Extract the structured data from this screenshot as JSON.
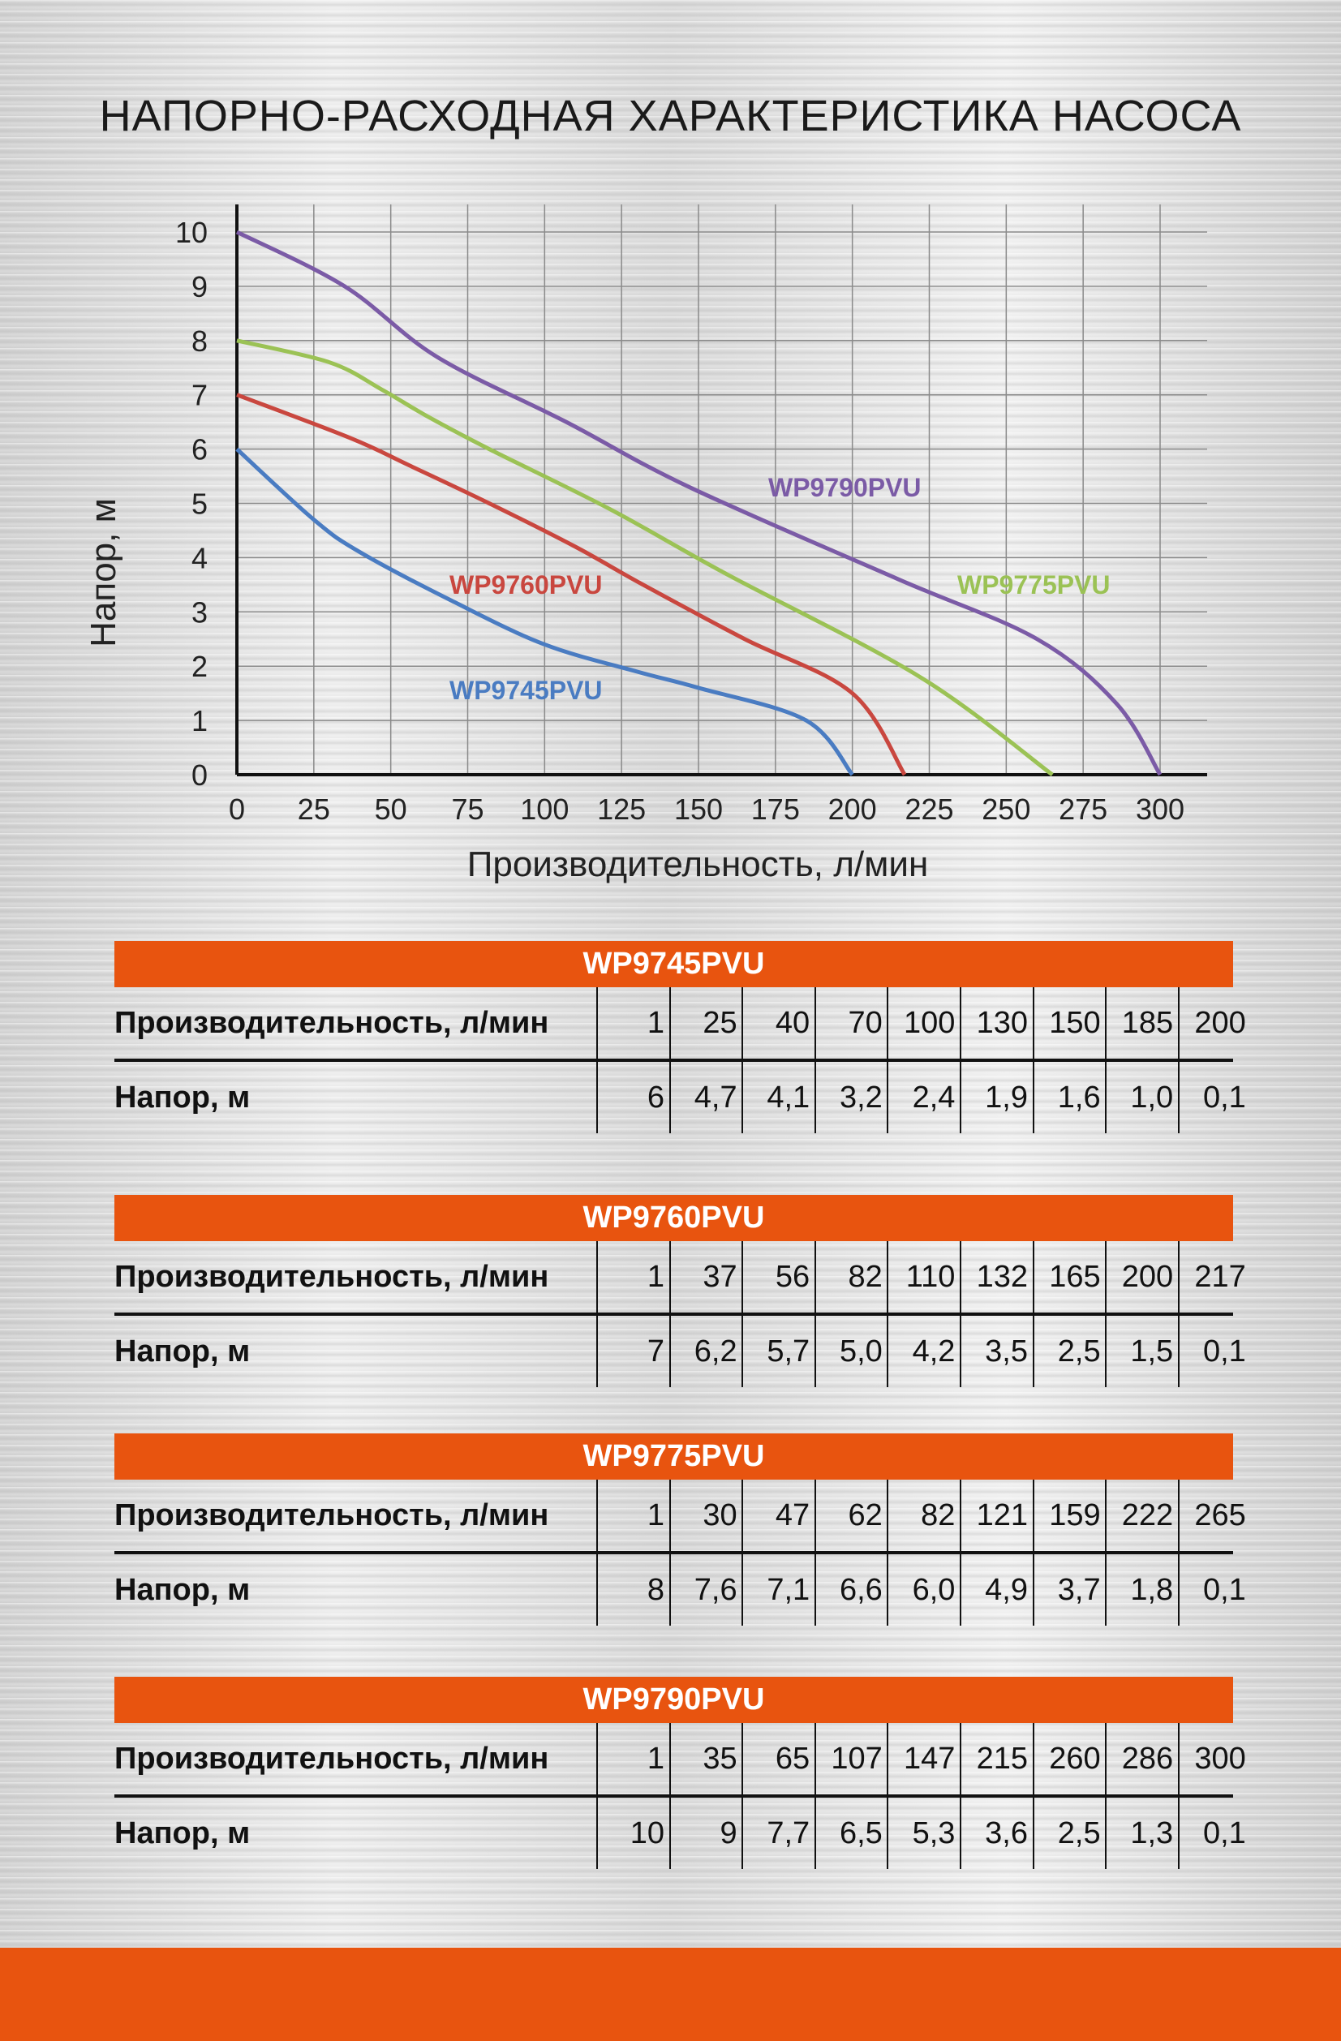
{
  "title": "НАПОРНО-РАСХОДНАЯ ХАРАКТЕРИСТИКА НАСОСА",
  "chart_data": {
    "type": "line",
    "title": "НАПОРНО-РАСХОДНАЯ ХАРАКТЕРИСТИКА НАСОСА",
    "xlabel": "Производительность, л/мин",
    "ylabel": "Напор, м",
    "xlim": [
      0,
      300
    ],
    "ylim": [
      0,
      10
    ],
    "xticks": [
      "0",
      "25",
      "50",
      "75",
      "100",
      "125",
      "150",
      "175",
      "200",
      "225",
      "250",
      "275",
      "300"
    ],
    "yticks": [
      "0",
      "1",
      "2",
      "3",
      "4",
      "5",
      "6",
      "7",
      "8",
      "9",
      "10"
    ],
    "grid": true,
    "series": [
      {
        "name": "WP9745PVU",
        "color": "#4A7CC2",
        "x": [
          1,
          25,
          40,
          70,
          100,
          130,
          150,
          185,
          200
        ],
        "y": [
          6,
          4.7,
          4.1,
          3.2,
          2.4,
          1.9,
          1.6,
          1.0,
          0.1
        ]
      },
      {
        "name": "WP9760PVU",
        "color": "#C9473F",
        "x": [
          1,
          37,
          56,
          82,
          110,
          132,
          165,
          200,
          217
        ],
        "y": [
          7,
          6.2,
          5.7,
          5.0,
          4.2,
          3.5,
          2.5,
          1.5,
          0.1
        ]
      },
      {
        "name": "WP9775PVU",
        "color": "#9BC255",
        "x": [
          1,
          30,
          47,
          62,
          82,
          121,
          159,
          222,
          265
        ],
        "y": [
          8,
          7.6,
          7.1,
          6.6,
          6.0,
          4.9,
          3.7,
          1.8,
          0.1
        ]
      },
      {
        "name": "WP9790PVU",
        "color": "#7B5BA6",
        "x": [
          1,
          35,
          65,
          107,
          147,
          215,
          260,
          286,
          300
        ],
        "y": [
          10,
          9,
          7.7,
          6.5,
          5.3,
          3.6,
          2.5,
          1.3,
          0.1
        ]
      }
    ]
  },
  "tables": [
    {
      "model": "WP9745PVU",
      "flow_label": "Производительность, л/мин",
      "head_label": "Напор, м",
      "flow": [
        "1",
        "25",
        "40",
        "70",
        "100",
        "130",
        "150",
        "185",
        "200"
      ],
      "head": [
        "6",
        "4,7",
        "4,1",
        "3,2",
        "2,4",
        "1,9",
        "1,6",
        "1,0",
        "0,1"
      ]
    },
    {
      "model": "WP9760PVU",
      "flow_label": "Производительность, л/мин",
      "head_label": "Напор, м",
      "flow": [
        "1",
        "37",
        "56",
        "82",
        "110",
        "132",
        "165",
        "200",
        "217"
      ],
      "head": [
        "7",
        "6,2",
        "5,7",
        "5,0",
        "4,2",
        "3,5",
        "2,5",
        "1,5",
        "0,1"
      ]
    },
    {
      "model": "WP9775PVU",
      "flow_label": "Производительность, л/мин",
      "head_label": "Напор, м",
      "flow": [
        "1",
        "30",
        "47",
        "62",
        "82",
        "121",
        "159",
        "222",
        "265"
      ],
      "head": [
        "8",
        "7,6",
        "7,1",
        "6,6",
        "6,0",
        "4,9",
        "3,7",
        "1,8",
        "0,1"
      ]
    },
    {
      "model": "WP9790PVU",
      "flow_label": "Производительность, л/мин",
      "head_label": "Напор, м",
      "flow": [
        "1",
        "35",
        "65",
        "107",
        "147",
        "215",
        "260",
        "286",
        "300"
      ],
      "head": [
        "10",
        "9",
        "7,7",
        "6,5",
        "5,3",
        "3,6",
        "2,5",
        "1,3",
        "0,1"
      ]
    }
  ],
  "colors": {
    "accent": "#E8540F"
  }
}
